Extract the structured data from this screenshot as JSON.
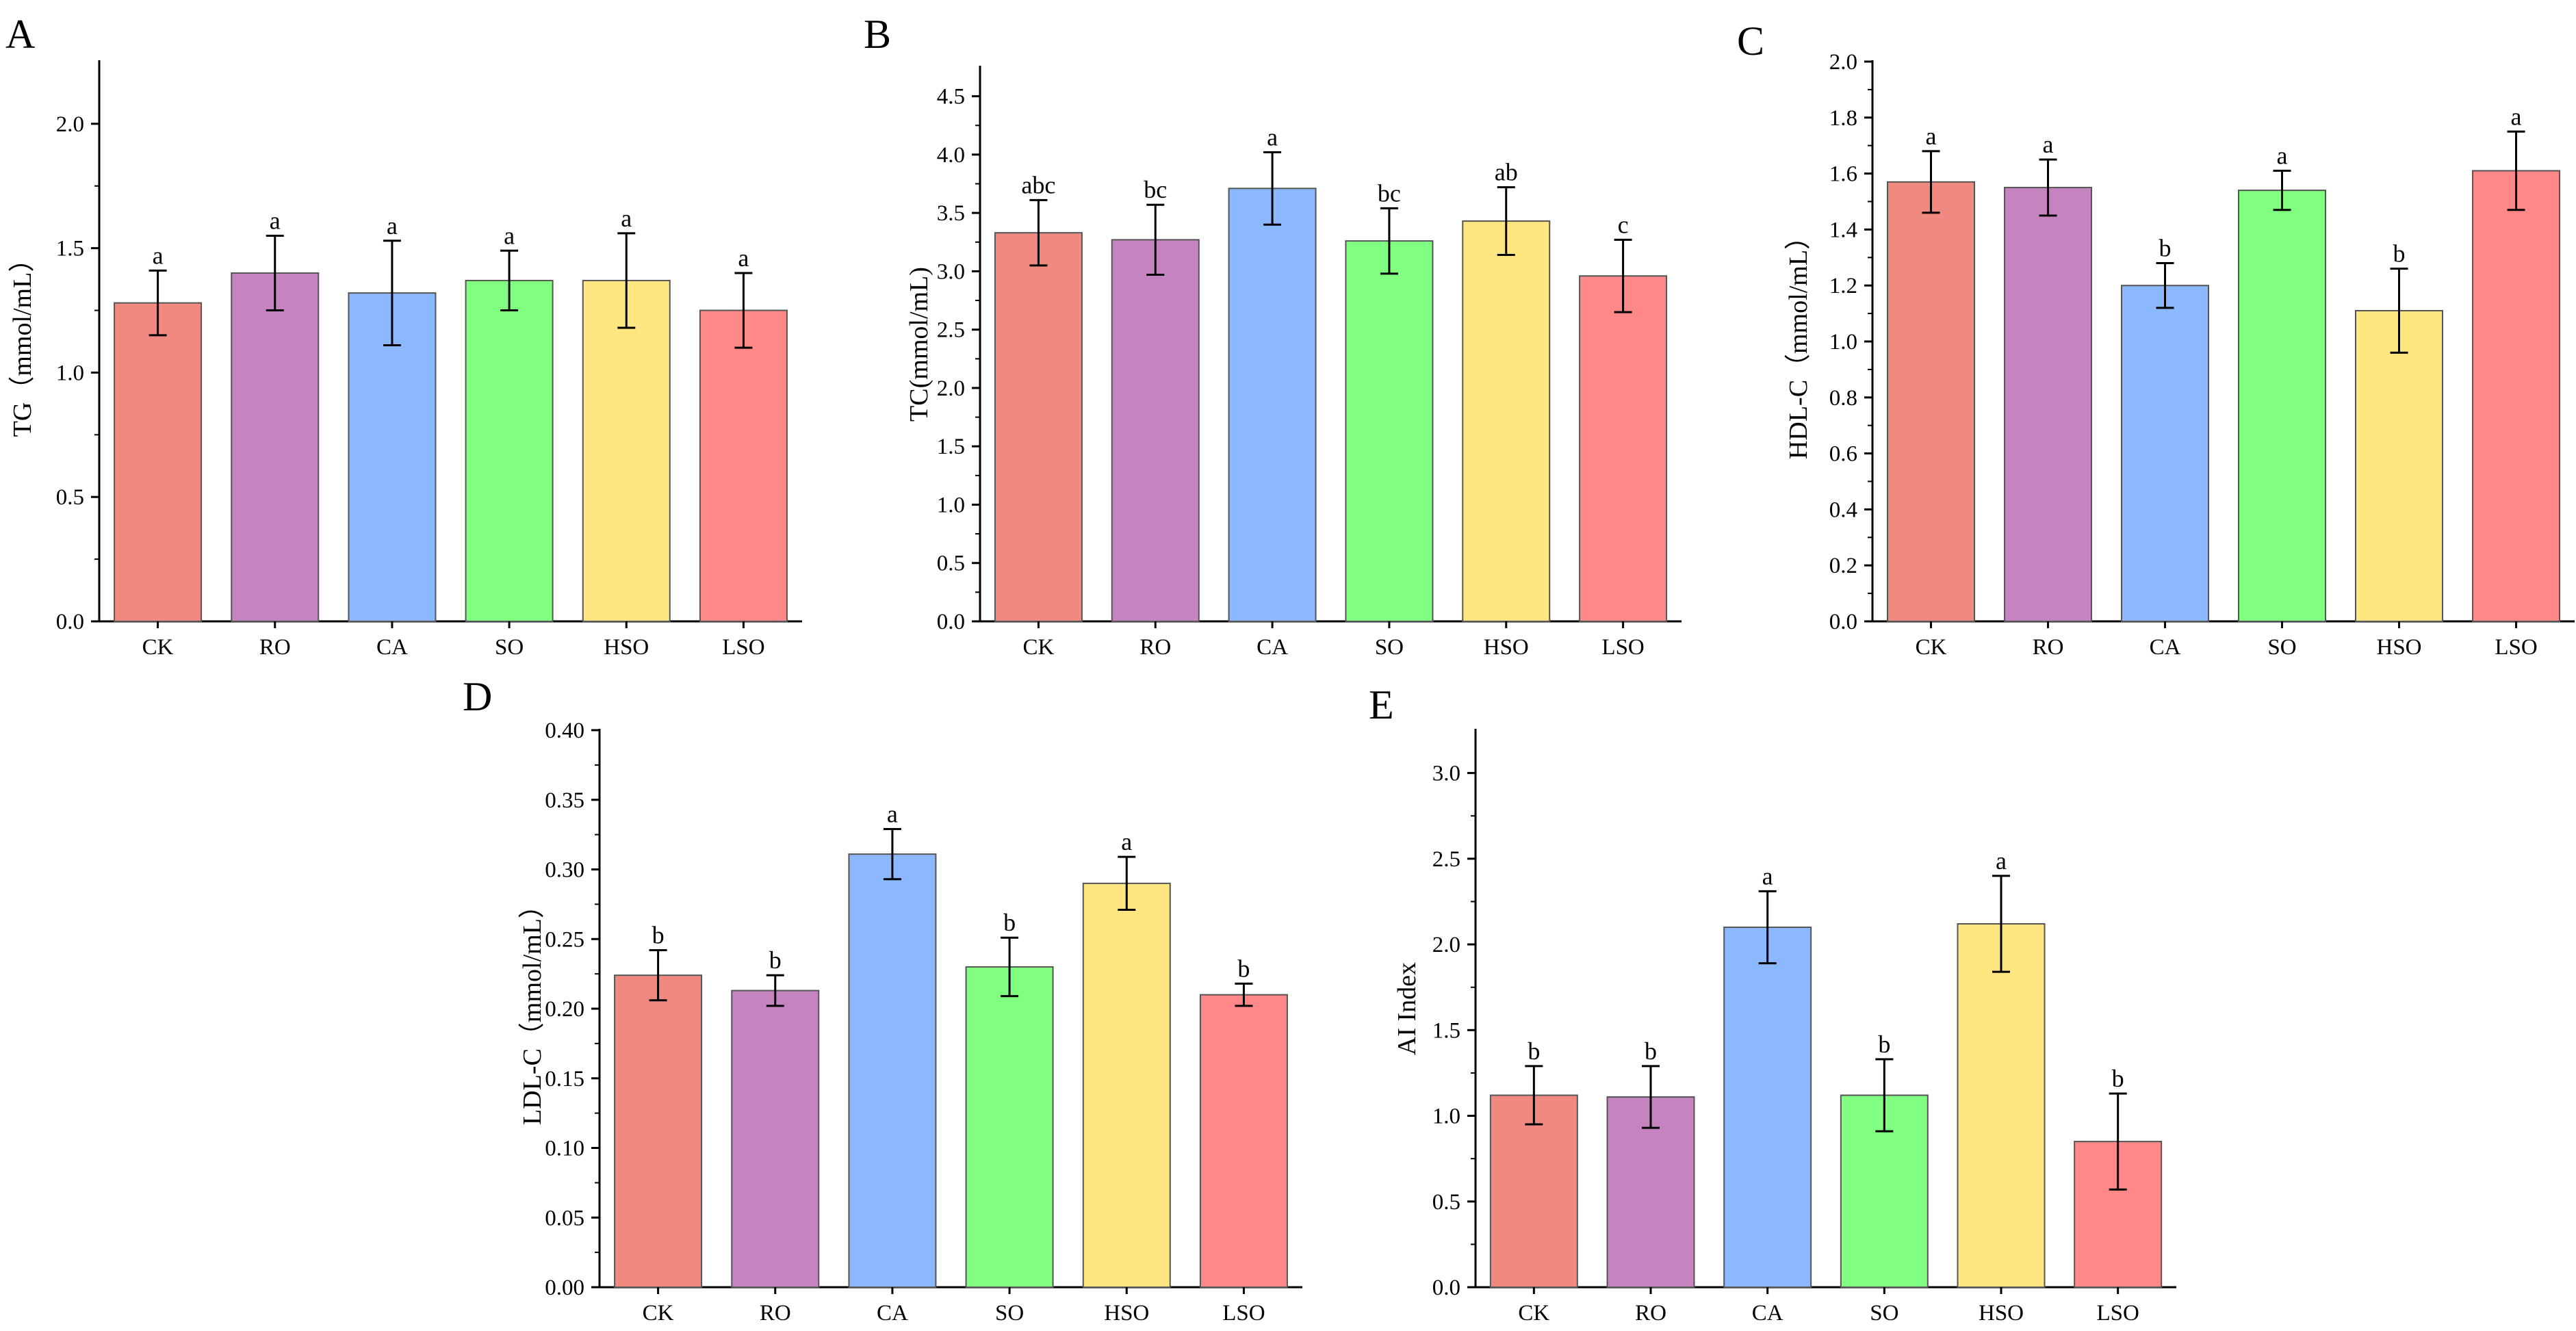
{
  "chart_data": [
    {
      "panel": "A",
      "type": "bar",
      "ylabel": "TG（mmol/mL）",
      "ylim": [
        0,
        2.25
      ],
      "yticks": [
        0.0,
        0.5,
        1.0,
        1.5,
        2.0
      ],
      "ytick_labels": [
        "0.0",
        "0.5",
        "1.0",
        "1.5",
        "2.0"
      ],
      "categories": [
        "CK",
        "RO",
        "CA",
        "SO",
        "HSO",
        "LSO"
      ],
      "values": [
        1.28,
        1.4,
        1.32,
        1.37,
        1.37,
        1.25
      ],
      "errors": [
        0.13,
        0.15,
        0.21,
        0.12,
        0.19,
        0.15
      ],
      "letters": [
        "a",
        "a",
        "a",
        "a",
        "a",
        "a"
      ]
    },
    {
      "panel": "B",
      "type": "bar",
      "ylabel": "TC(mmol/mL)",
      "ylim": [
        0,
        4.75
      ],
      "yticks": [
        0.0,
        0.5,
        1.0,
        1.5,
        2.0,
        2.5,
        3.0,
        3.5,
        4.0,
        4.5
      ],
      "ytick_labels": [
        "0.0",
        "0.5",
        "1.0",
        "1.5",
        "2.0",
        "2.5",
        "3.0",
        "3.5",
        "4.0",
        "4.5"
      ],
      "categories": [
        "CK",
        "RO",
        "CA",
        "SO",
        "HSO",
        "LSO"
      ],
      "values": [
        3.33,
        3.27,
        3.71,
        3.26,
        3.43,
        2.96
      ],
      "errors": [
        0.28,
        0.3,
        0.31,
        0.28,
        0.29,
        0.31
      ],
      "letters": [
        "abc",
        "bc",
        "a",
        "bc",
        "ab",
        "c"
      ]
    },
    {
      "panel": "C",
      "type": "bar",
      "ylabel": "HDL-C（mmol/mL）",
      "ylim": [
        0,
        2.0
      ],
      "yticks": [
        0.0,
        0.2,
        0.4,
        0.6,
        0.8,
        1.0,
        1.2,
        1.4,
        1.6,
        1.8,
        2.0
      ],
      "ytick_labels": [
        "0.0",
        "0.2",
        "0.4",
        "0.6",
        "0.8",
        "1.0",
        "1.2",
        "1.4",
        "1.6",
        "1.8",
        "2.0"
      ],
      "categories": [
        "CK",
        "RO",
        "CA",
        "SO",
        "HSO",
        "LSO"
      ],
      "values": [
        1.57,
        1.55,
        1.2,
        1.54,
        1.11,
        1.61
      ],
      "errors": [
        0.11,
        0.1,
        0.08,
        0.07,
        0.15,
        0.14
      ],
      "letters": [
        "a",
        "a",
        "b",
        "a",
        "b",
        "a"
      ]
    },
    {
      "panel": "D",
      "type": "bar",
      "ylabel": "LDL-C（mmol/mL）",
      "ylim": [
        0,
        0.4
      ],
      "yticks": [
        0.0,
        0.05,
        0.1,
        0.15,
        0.2,
        0.25,
        0.3,
        0.35,
        0.4
      ],
      "ytick_labels": [
        "0.00",
        "0.05",
        "0.10",
        "0.15",
        "0.20",
        "0.25",
        "0.30",
        "0.35",
        "0.40"
      ],
      "categories": [
        "CK",
        "RO",
        "CA",
        "SO",
        "HSO",
        "LSO"
      ],
      "values": [
        0.224,
        0.213,
        0.311,
        0.23,
        0.29,
        0.21
      ],
      "errors": [
        0.018,
        0.011,
        0.018,
        0.021,
        0.019,
        0.008
      ],
      "letters": [
        "b",
        "b",
        "a",
        "b",
        "a",
        "b"
      ]
    },
    {
      "panel": "E",
      "type": "bar",
      "ylabel": "AI Index",
      "ylim": [
        0,
        3.25
      ],
      "yticks": [
        0.0,
        0.5,
        1.0,
        1.5,
        2.0,
        2.5,
        3.0
      ],
      "ytick_labels": [
        "0.0",
        "0.5",
        "1.0",
        "1.5",
        "2.0",
        "2.5",
        "3.0"
      ],
      "categories": [
        "CK",
        "RO",
        "CA",
        "SO",
        "HSO",
        "LSO"
      ],
      "values": [
        1.12,
        1.11,
        2.1,
        1.12,
        2.12,
        0.85
      ],
      "errors": [
        0.17,
        0.18,
        0.21,
        0.21,
        0.28,
        0.28
      ],
      "letters": [
        "b",
        "b",
        "a",
        "b",
        "a",
        "b"
      ]
    }
  ],
  "colors": {
    "bar_fills": [
      "#f08a80",
      "#c584c0",
      "#8cb8ff",
      "#80ff80",
      "#ffe680",
      "#ff8888"
    ],
    "bar_stroke": "#555555",
    "axis": "#000000"
  }
}
